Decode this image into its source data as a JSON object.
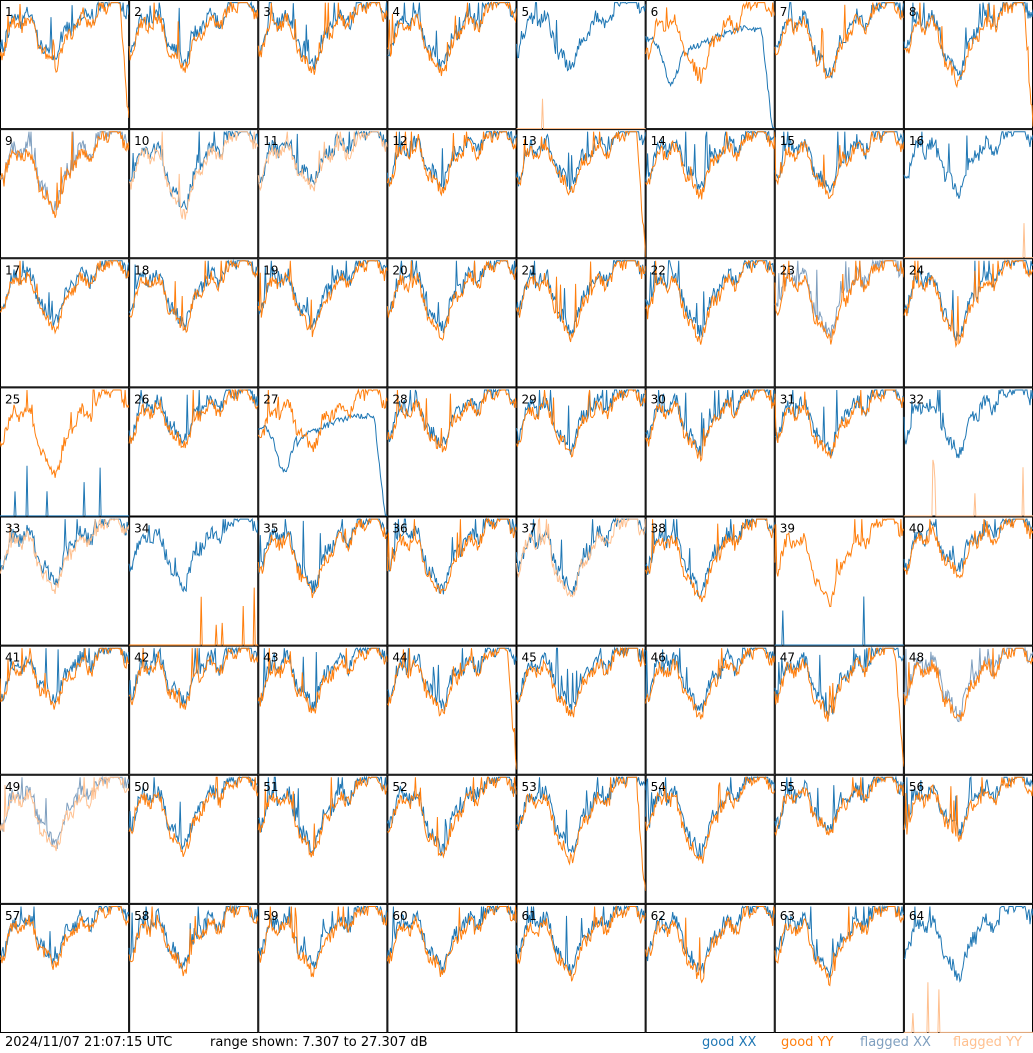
{
  "chart_data": {
    "type": "line",
    "panel_count": 64,
    "panel_labels": [
      "1",
      "2",
      "3",
      "4",
      "5",
      "6",
      "7",
      "8",
      "9",
      "10",
      "11",
      "12",
      "13",
      "14",
      "15",
      "16",
      "17",
      "18",
      "19",
      "20",
      "21",
      "22",
      "23",
      "24",
      "25",
      "26",
      "27",
      "28",
      "29",
      "30",
      "31",
      "32",
      "33",
      "34",
      "35",
      "36",
      "37",
      "38",
      "39",
      "40",
      "41",
      "42",
      "43",
      "44",
      "45",
      "46",
      "47",
      "48",
      "49",
      "50",
      "51",
      "52",
      "53",
      "54",
      "55",
      "56",
      "57",
      "58",
      "59",
      "60",
      "61",
      "62",
      "63",
      "64"
    ],
    "y_range_db": [
      7.307,
      27.307
    ],
    "series": [
      {
        "name": "good XX",
        "color": "#1f77b4"
      },
      {
        "name": "good YY",
        "color": "#ff7f0e"
      },
      {
        "name": "flagged XX",
        "color": "#7f9fbf"
      },
      {
        "name": "flagged YY",
        "color": "#ffc08f"
      }
    ],
    "flagged_xx_panels": [
      9,
      23,
      48,
      49
    ],
    "flagged_yy_panels": [
      5,
      10,
      11,
      16,
      32,
      33,
      37,
      49,
      64
    ],
    "dead_xx_panels": [
      25,
      39
    ],
    "dead_yy_panels": [
      5,
      16,
      32,
      34,
      64
    ],
    "dead_or_flagged_xx_panels": [
      9,
      32
    ],
    "dead_yy_spiky": [
      34
    ],
    "wavy_xx_panels": [
      6,
      27
    ],
    "droop_yy_panels": [
      1,
      8,
      13,
      44,
      47,
      53
    ]
  },
  "footer": {
    "timestamp": "2024/11/07 21:07:15 UTC",
    "range_text": "range shown: 7.307 to 27.307 dB",
    "legend_good": "good",
    "legend_flagged": "flagged",
    "legend_xx": "XX",
    "legend_yy": "YY",
    "color_good_xx": "#1f77b4",
    "color_good_yy": "#ff7f0e",
    "color_flagged_xx": "#7f9fbf",
    "color_flagged_yy": "#ffc08f"
  }
}
